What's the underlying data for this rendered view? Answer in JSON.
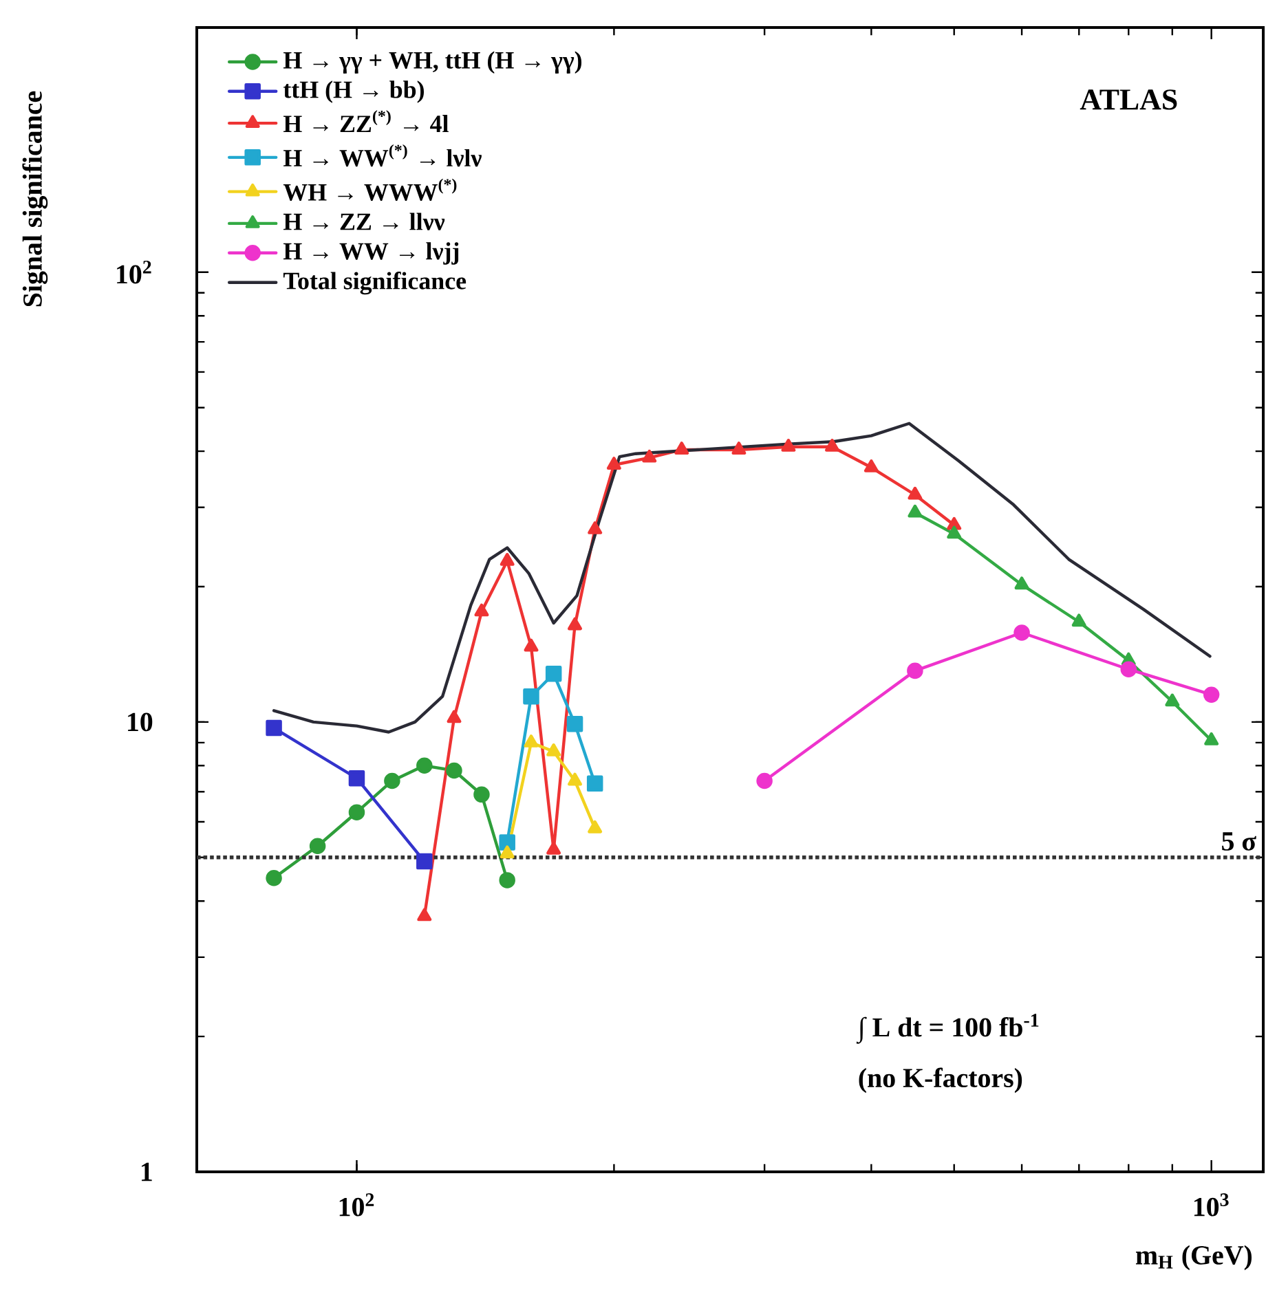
{
  "chart_data": {
    "type": "line",
    "xlabel": "m$_{H}$ (GeV)",
    "ylabel": "Signal significance",
    "log": "xy",
    "xlim": [
      65,
      1150
    ],
    "ylim": [
      1,
      350
    ],
    "xticks": [
      {
        "value": 100,
        "label": "10$^{2}$"
      },
      {
        "value": 1000,
        "label": "10$^{3}$"
      }
    ],
    "yticks": [
      1,
      10,
      {
        "value": 100,
        "label": "10$^{2}$"
      }
    ],
    "grid": false,
    "legend": "top left",
    "line_style": "solid",
    "series": [
      {
        "name": "H → γγ + WH, ttH (H → γγ)",
        "color": "#2e9e3a",
        "marker": "circle",
        "x": [
          80,
          90,
          100,
          110,
          120,
          130,
          140,
          150
        ],
        "values": [
          4.5,
          5.3,
          6.3,
          7.4,
          8.0,
          7.8,
          6.9,
          4.45
        ]
      },
      {
        "name": "ttH (H → bb)",
        "color": "#3333cc",
        "marker": "square",
        "x": [
          80,
          100,
          120
        ],
        "values": [
          9.7,
          7.5,
          4.9
        ]
      },
      {
        "name": "H → ZZ$^{(*)}$ → 4l",
        "color": "#ee3333",
        "marker": "triangle",
        "x": [
          120,
          130,
          140,
          150,
          160,
          170,
          180,
          190,
          200,
          220,
          240,
          280,
          320,
          360,
          400,
          450,
          500
        ],
        "values": [
          3.7,
          10.2,
          17.6,
          22.8,
          14.7,
          5.2,
          16.4,
          26.8,
          37.3,
          38.7,
          40.3,
          40.3,
          40.9,
          40.9,
          36.8,
          32,
          27.4
        ]
      },
      {
        "name": "H → WW$^{(*)}$ → lνlν",
        "color": "#22a8d0",
        "marker": "square",
        "x": [
          150,
          160,
          170,
          180,
          190
        ],
        "values": [
          5.4,
          11.4,
          12.8,
          9.9,
          7.3
        ]
      },
      {
        "name": "WH → WWW$^{(*)}$",
        "color": "#f2d21e",
        "marker": "triangle",
        "x": [
          150,
          160,
          170,
          180,
          190
        ],
        "values": [
          5.1,
          9.0,
          8.6,
          7.4,
          5.8
        ]
      },
      {
        "name": "H → ZZ → llνν",
        "color": "#33aa44",
        "marker": "triangle",
        "x": [
          450,
          500,
          600,
          700,
          800,
          900,
          1000
        ],
        "values": [
          29.2,
          26.2,
          20.2,
          16.7,
          13.7,
          11.1,
          9.1
        ]
      },
      {
        "name": "H → WW → lνjj",
        "color": "#ee33cc",
        "marker": "circle",
        "x": [
          300,
          450,
          600,
          800,
          1000
        ],
        "values": [
          7.4,
          13.0,
          15.8,
          13.1,
          11.5
        ]
      },
      {
        "name": "Total significance",
        "color": "#2a2a35",
        "marker": "none",
        "x": [
          80,
          89,
          100,
          109,
          117,
          126,
          136,
          143,
          150,
          159,
          170,
          181,
          192,
          203,
          212,
          320,
          361,
          400,
          443,
          506,
          587,
          681,
          833,
          996
        ],
        "values": [
          10.6,
          10,
          9.8,
          9.5,
          10.0,
          11.4,
          18.2,
          23,
          24.4,
          21.4,
          16.6,
          19.1,
          27.8,
          38.9,
          39.5,
          41.5,
          42,
          43.3,
          46.1,
          38.1,
          30.4,
          23,
          17.8,
          14.0
        ]
      }
    ],
    "ref_lines": [
      {
        "axis": "y",
        "value": 5,
        "label": "5 σ",
        "color": "#333333",
        "line_style": "dotted"
      }
    ],
    "annotations": [
      "ATLAS",
      "∫ L dt = 100 fb$^{-1}$",
      "(no K-factors)"
    ]
  }
}
